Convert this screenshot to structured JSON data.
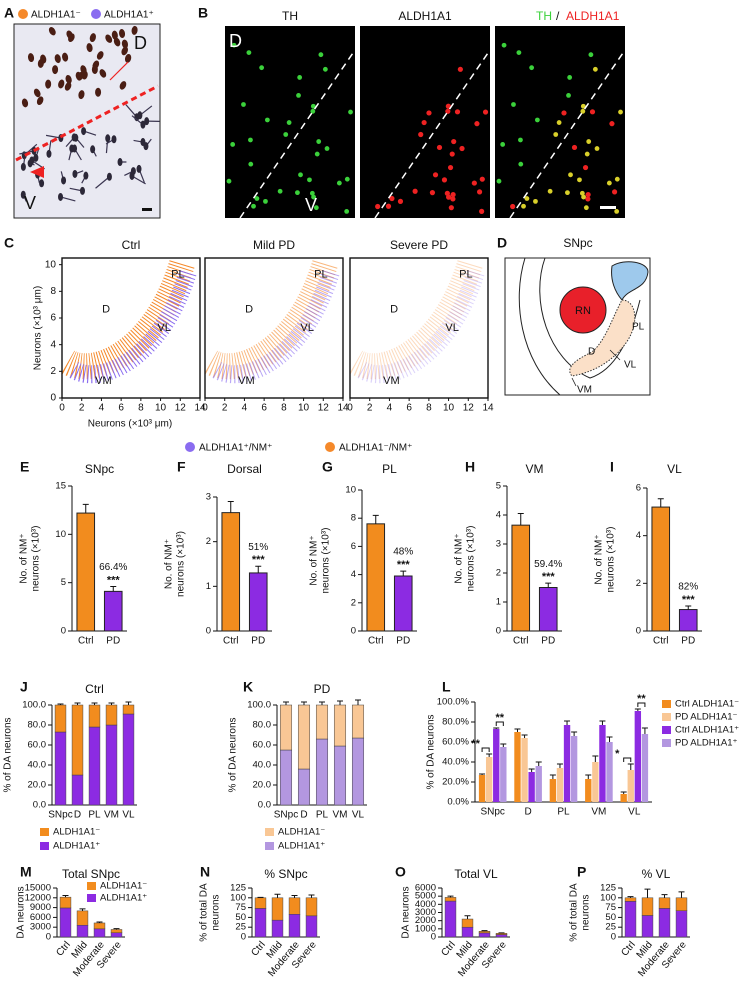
{
  "figure": {
    "A": {
      "letter": "A",
      "legend": [
        "ALDH1A1⁻",
        "ALDH1A1⁺"
      ],
      "regions": [
        "D",
        "V"
      ]
    },
    "B": {
      "letter": "B",
      "channels": [
        "TH",
        "ALDH1A1"
      ],
      "merge": [
        "TH",
        "/",
        "ALDH1A1"
      ],
      "regions": [
        "D",
        "V"
      ]
    },
    "C": {
      "letter": "C",
      "plots": [
        "Ctrl",
        "Mild PD",
        "Severe PD"
      ],
      "ylabel": "Neurons (×10³ μm)",
      "xlabel": "Neurons (×10³ μm)",
      "xlim": [
        0,
        14
      ],
      "xticks": [
        0,
        2,
        4,
        6,
        8,
        10,
        12,
        14
      ],
      "ylim": [
        0,
        10.5
      ],
      "yticks": [
        0,
        2,
        4,
        6,
        8,
        10
      ],
      "regions": [
        "PL",
        "D",
        "VL",
        "VM"
      ],
      "legend": [
        {
          "name": "ALDH1A1⁺/NM⁺",
          "color": "#8a6cf0"
        },
        {
          "name": "ALDH1A1⁻/NM⁺",
          "color": "#f5892a"
        }
      ]
    },
    "D": {
      "letter": "D",
      "title": "SNpc",
      "labels": [
        "RN",
        "PL",
        "D",
        "VL",
        "VM"
      ]
    }
  },
  "chart_data": [
    {
      "type": "bar",
      "panel": "E",
      "title": "SNpc",
      "ylabel": [
        "No. of NM⁺",
        "neurons (×10³)"
      ],
      "categories": [
        "Ctrl",
        "PD"
      ],
      "values": [
        12.2,
        4.1
      ],
      "errors": [
        0.9,
        0.5
      ],
      "colors": [
        "#f28c1e",
        "#8c2be2"
      ],
      "ylim": [
        0,
        15
      ],
      "yticks": [
        0,
        5,
        10,
        15
      ],
      "annotations": [
        "66.4%",
        "***"
      ]
    },
    {
      "type": "bar",
      "panel": "F",
      "title": "Dorsal",
      "ylabel": [
        "No. of NM⁺",
        "neurons (×10³)"
      ],
      "categories": [
        "Ctrl",
        "PD"
      ],
      "values": [
        2.65,
        1.3
      ],
      "errors": [
        0.25,
        0.15
      ],
      "colors": [
        "#f28c1e",
        "#8c2be2"
      ],
      "ylim": [
        0,
        3
      ],
      "yticks": [
        0,
        1,
        2,
        3
      ],
      "annotations": [
        "51%",
        "***"
      ]
    },
    {
      "type": "bar",
      "panel": "G",
      "title": "PL",
      "ylabel": [
        "No. of NM⁺",
        "neurons (×10³)"
      ],
      "categories": [
        "Ctrl",
        "PD"
      ],
      "values": [
        7.6,
        3.9
      ],
      "errors": [
        0.6,
        0.35
      ],
      "colors": [
        "#f28c1e",
        "#8c2be2"
      ],
      "ylim": [
        0,
        10
      ],
      "yticks": [
        0,
        2,
        4,
        6,
        8,
        10
      ],
      "annotations": [
        "48%",
        "***"
      ]
    },
    {
      "type": "bar",
      "panel": "H",
      "title": "VM",
      "ylabel": [
        "No. of NM⁺",
        "neurons (×10³)"
      ],
      "categories": [
        "Ctrl",
        "PD"
      ],
      "values": [
        3.65,
        1.5
      ],
      "errors": [
        0.4,
        0.15
      ],
      "colors": [
        "#f28c1e",
        "#8c2be2"
      ],
      "ylim": [
        0,
        5
      ],
      "yticks": [
        0,
        1,
        2,
        3,
        4,
        5
      ],
      "annotations": [
        "59.4%",
        "***"
      ]
    },
    {
      "type": "bar",
      "panel": "I",
      "title": "VL",
      "ylabel": [
        "No. of NM⁺",
        "neurons (×10³)"
      ],
      "categories": [
        "Ctrl",
        "PD"
      ],
      "values": [
        5.2,
        0.9
      ],
      "errors": [
        0.35,
        0.15
      ],
      "colors": [
        "#f28c1e",
        "#8c2be2"
      ],
      "ylim": [
        0,
        6
      ],
      "yticks": [
        0,
        2,
        4,
        6
      ],
      "annotations": [
        "82%",
        "***"
      ]
    },
    {
      "type": "stacked",
      "panel": "J",
      "title": "Ctrl",
      "ylabel": [
        "% of DA neurons"
      ],
      "categories": [
        "SNpc",
        "D",
        "PL",
        "VM",
        "VL"
      ],
      "series": [
        {
          "name": "ALDH1A1⁺",
          "color": "#8c2be2",
          "values": [
            73,
            30,
            78,
            80,
            91
          ],
          "errors": [
            1,
            2,
            4,
            4,
            2
          ]
        },
        {
          "name": "ALDH1A1⁻",
          "color": "#f28c1e",
          "values": [
            27,
            70,
            22,
            20,
            9
          ],
          "errors": [
            1,
            2,
            2,
            2,
            3
          ]
        }
      ],
      "ylim": [
        0,
        100
      ],
      "yticks": [
        {
          "value": 0,
          "label": "0.0"
        },
        {
          "value": 20,
          "label": "20.0"
        },
        {
          "value": 40,
          "label": "40.0"
        },
        {
          "value": 60,
          "label": "60.0"
        },
        {
          "value": 80,
          "label": "80.0"
        },
        {
          "value": 100,
          "label": "100.0"
        }
      ]
    },
    {
      "type": "stacked",
      "panel": "K",
      "title": "PD",
      "ylabel": [
        "% of DA neurons"
      ],
      "categories": [
        "SNpc",
        "D",
        "PL",
        "VM",
        "VL"
      ],
      "series": [
        {
          "name": "ALDH1A1⁺",
          "color": "#b397e0",
          "values": [
            55,
            36,
            66,
            59,
            67
          ],
          "errors": [
            3,
            3,
            3,
            5,
            5
          ]
        },
        {
          "name": "ALDH1A1⁻",
          "color": "#f9c795",
          "values": [
            45,
            64,
            34,
            41,
            33
          ],
          "errors": [
            3,
            3,
            3,
            4,
            5
          ]
        }
      ],
      "ylim": [
        0,
        100
      ],
      "yticks": [
        {
          "value": 0,
          "label": "0.0"
        },
        {
          "value": 20,
          "label": "20.0"
        },
        {
          "value": 40,
          "label": "40.0"
        },
        {
          "value": 60,
          "label": "60.0"
        },
        {
          "value": 80,
          "label": "80.0"
        },
        {
          "value": 100,
          "label": "100.0"
        }
      ]
    },
    {
      "type": "grouped",
      "panel": "L",
      "ylabel": [
        "% of DA neurons"
      ],
      "categories": [
        "SNpc",
        "D",
        "PL",
        "VM",
        "VL"
      ],
      "series": [
        {
          "name": "Ctrl ALDH1A1⁻",
          "color": "#f28c1e",
          "values": [
            27,
            70,
            23,
            23,
            8
          ],
          "errors": [
            1,
            3,
            4,
            4,
            2
          ]
        },
        {
          "name": "PD ALDH1A1⁻",
          "color": "#f9c795",
          "values": [
            45,
            64,
            34,
            40,
            32
          ],
          "errors": [
            3,
            3,
            4,
            6,
            6
          ]
        },
        {
          "name": "Ctrl ALDH1A1⁺",
          "color": "#8c2be2",
          "values": [
            73,
            30,
            77,
            77,
            91
          ],
          "errors": [
            1,
            3,
            4,
            4,
            2
          ]
        },
        {
          "name": "PD ALDH1A1⁺",
          "color": "#b397e0",
          "values": [
            55,
            36,
            66,
            60,
            68
          ],
          "errors": [
            3,
            4,
            4,
            5,
            6
          ]
        }
      ],
      "ylim": [
        0,
        100
      ],
      "yticks": [
        {
          "value": 0,
          "label": "0.0%"
        },
        {
          "value": 20,
          "label": "20.0%"
        },
        {
          "value": 40,
          "label": "40.0%"
        },
        {
          "value": 60,
          "label": "60.0%"
        },
        {
          "value": 80,
          "label": "80.0%"
        },
        {
          "value": 100,
          "label": "100.0%"
        }
      ],
      "significance": [
        "**",
        "**",
        "*",
        "**"
      ]
    },
    {
      "type": "stacked",
      "panel": "M",
      "title": "Total SNpc",
      "ylabel": [
        "DA neurons"
      ],
      "categories": [
        "Ctrl",
        "Mild",
        "Moderate",
        "Severe"
      ],
      "series": [
        {
          "name": "ALDH1A1⁺",
          "color": "#8c2be2",
          "values": [
            8900,
            3600,
            2500,
            1300
          ],
          "errors": [
            500,
            900,
            300,
            200
          ]
        },
        {
          "name": "ALDH1A1⁻",
          "color": "#f28c1e",
          "values": [
            3300,
            4400,
            1800,
            1000
          ],
          "errors": [
            500,
            600,
            300,
            250
          ]
        }
      ],
      "ylim": [
        0,
        15000
      ],
      "yticks": [
        0,
        3000,
        6000,
        9000,
        12000,
        15000
      ]
    },
    {
      "type": "stacked",
      "panel": "N",
      "title": "% SNpc",
      "ylabel": [
        "% of total DA",
        "neurons"
      ],
      "categories": [
        "Ctrl",
        "Mild",
        "Moderate",
        "Severe"
      ],
      "series": [
        {
          "name": "ALDH1A1⁺",
          "color": "#8c2be2",
          "values": [
            73,
            43,
            58,
            54
          ],
          "errors": [
            1,
            9,
            4,
            4
          ]
        },
        {
          "name": "ALDH1A1⁻",
          "color": "#f28c1e",
          "values": [
            27,
            57,
            42,
            46
          ],
          "errors": [
            1,
            9,
            6,
            7
          ]
        }
      ],
      "ylim": [
        0,
        125
      ],
      "yticks": [
        0,
        25,
        50,
        75,
        100,
        125
      ]
    },
    {
      "type": "stacked",
      "panel": "O",
      "title": "Total VL",
      "ylabel": [
        "DA neurons"
      ],
      "categories": [
        "Ctrl",
        "Mild",
        "Moderate",
        "Severe"
      ],
      "series": [
        {
          "name": "ALDH1A1⁺",
          "color": "#8c2be2",
          "values": [
            4400,
            1200,
            500,
            300
          ],
          "errors": [
            200,
            300,
            50,
            40
          ]
        },
        {
          "name": "ALDH1A1⁻",
          "color": "#f28c1e",
          "values": [
            450,
            1000,
            200,
            150
          ],
          "errors": [
            150,
            400,
            80,
            60
          ]
        }
      ],
      "ylim": [
        0,
        6000
      ],
      "yticks": [
        0,
        1000,
        2000,
        3000,
        4000,
        5000,
        6000
      ]
    },
    {
      "type": "stacked",
      "panel": "P",
      "title": "% VL",
      "ylabel": [
        "% of total DA",
        "neurons"
      ],
      "categories": [
        "Ctrl",
        "Mild",
        "Moderate",
        "Severe"
      ],
      "series": [
        {
          "name": "ALDH1A1⁺",
          "color": "#8c2be2",
          "values": [
            91,
            55,
            73,
            67
          ],
          "errors": [
            2,
            20,
            7,
            12
          ]
        },
        {
          "name": "ALDH1A1⁻",
          "color": "#f28c1e",
          "values": [
            9,
            45,
            27,
            33
          ],
          "errors": [
            3,
            22,
            8,
            15
          ]
        }
      ],
      "ylim": [
        0,
        125
      ],
      "yticks": [
        0,
        25,
        50,
        75,
        100,
        125
      ]
    }
  ]
}
